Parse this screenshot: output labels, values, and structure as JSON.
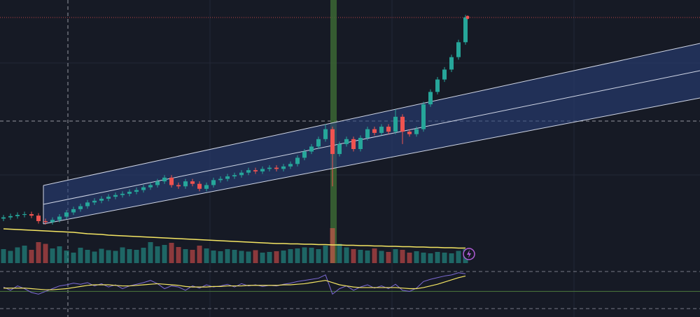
{
  "chart_data": {
    "type": "candlestick",
    "up_color": "#26a69a",
    "down_color": "#ef5350",
    "ylim": [
      0,
      100
    ],
    "open": [
      12.0,
      12.5,
      13.0,
      13.5,
      13.8,
      13.2,
      11.0,
      10.6,
      11.5,
      12.8,
      14.5,
      15.8,
      17.0,
      18.5,
      19.2,
      20.0,
      20.8,
      21.5,
      22.0,
      22.8,
      23.5,
      24.6,
      25.5,
      27.0,
      28.5,
      25.5,
      25.0,
      27.0,
      26.0,
      24.0,
      25.5,
      27.5,
      28.0,
      29.0,
      29.5,
      30.5,
      31.5,
      31.0,
      32.0,
      32.5,
      32.0,
      33.0,
      34.0,
      36.5,
      39.0,
      41.0,
      44.0,
      48.0,
      38.0,
      42.0,
      44.0,
      40.0,
      44.5,
      48.0,
      46.5,
      49.0,
      47.0,
      53.0,
      47.0,
      46.0,
      48.0,
      58.0,
      63.0,
      68.0,
      72.0,
      77.0,
      83.0
    ],
    "high": [
      13.5,
      14,
      14.5,
      14.8,
      14.8,
      14.2,
      12,
      12.5,
      13.8,
      15.5,
      16.8,
      18,
      19.5,
      20.2,
      21,
      21.8,
      22.5,
      23,
      23.8,
      24.5,
      25.6,
      26.5,
      28,
      29.5,
      29.5,
      26.5,
      28,
      28,
      27,
      26.5,
      28.5,
      29,
      30,
      30.5,
      31.5,
      32.5,
      32.5,
      33,
      33.5,
      33.5,
      34,
      35,
      37.5,
      40,
      42,
      45,
      50,
      49,
      43,
      45,
      45,
      45.5,
      49,
      49,
      50,
      50,
      56,
      54,
      48,
      49,
      59,
      64,
      69,
      73,
      78,
      84,
      94
    ],
    "low": [
      11,
      11.5,
      12,
      12.5,
      12.2,
      10,
      9.6,
      9.6,
      10.5,
      11.8,
      13.5,
      14.8,
      16,
      17.5,
      18.2,
      19,
      19.8,
      20.5,
      21,
      21.8,
      22.5,
      23.6,
      24.5,
      26,
      24.5,
      24,
      24,
      25,
      23,
      23,
      24.5,
      26.5,
      27,
      28,
      28.5,
      29.5,
      30,
      30,
      31,
      31,
      31,
      32,
      33,
      35.5,
      38,
      40,
      43,
      25,
      37,
      41,
      39,
      39,
      43.5,
      45.5,
      45.5,
      46,
      46,
      42,
      45,
      45,
      47,
      57,
      62,
      67,
      71,
      76,
      82
    ],
    "close": [
      12.5,
      13.0,
      13.5,
      13.8,
      13.2,
      11.0,
      10.6,
      11.5,
      12.8,
      14.5,
      15.8,
      17.0,
      18.5,
      19.2,
      20.0,
      20.8,
      21.5,
      22.0,
      22.8,
      23.5,
      24.6,
      25.5,
      27.0,
      28.5,
      25.5,
      25.0,
      27.0,
      26.0,
      24.0,
      25.5,
      27.5,
      28.0,
      29.0,
      29.5,
      30.5,
      31.5,
      31.0,
      32.0,
      32.5,
      32.0,
      33.0,
      34.0,
      36.5,
      39.0,
      41.0,
      44.0,
      48.0,
      38.0,
      42.0,
      44.0,
      40.0,
      44.5,
      48.0,
      46.5,
      49.0,
      47.0,
      53.0,
      47.0,
      46.0,
      48.0,
      58.0,
      63.0,
      68.0,
      72.0,
      77.0,
      83.0,
      93.0
    ],
    "volume": [
      40,
      35,
      45,
      50,
      38,
      60,
      55,
      42,
      48,
      36,
      30,
      44,
      38,
      33,
      41,
      37,
      35,
      45,
      40,
      38,
      44,
      60,
      48,
      52,
      58,
      46,
      40,
      38,
      50,
      42,
      36,
      34,
      40,
      38,
      35,
      33,
      37,
      30,
      32,
      34,
      36,
      40,
      42,
      45,
      44,
      40,
      50,
      100,
      55,
      45,
      40,
      38,
      36,
      42,
      35,
      32,
      40,
      38,
      30,
      34,
      30,
      28,
      32,
      30,
      28,
      35,
      40
    ],
    "volume_ma": [
      98,
      97,
      96,
      95,
      94,
      93,
      92,
      91,
      90,
      89,
      88,
      86,
      84,
      83,
      82,
      80,
      79,
      78,
      77,
      76,
      75,
      74,
      73,
      72,
      71,
      70,
      69,
      68,
      67,
      66,
      65,
      64,
      63,
      62,
      61,
      60,
      59,
      58,
      57,
      56,
      56,
      55,
      55,
      54,
      54,
      53,
      53,
      52,
      52,
      51,
      51,
      50,
      50,
      49,
      49,
      48,
      48,
      47,
      47,
      46,
      46,
      45,
      45,
      44,
      44,
      43,
      43
    ],
    "volume_lim": [
      0,
      100
    ],
    "volume_ma_color": "#f5e663",
    "rsi": [
      58,
      52,
      60,
      55,
      48,
      45,
      50,
      55,
      60,
      62,
      65,
      63,
      66,
      60,
      64,
      58,
      62,
      55,
      60,
      63,
      66,
      70,
      64,
      55,
      60,
      58,
      52,
      60,
      56,
      62,
      58,
      60,
      63,
      58,
      64,
      60,
      62,
      59,
      61,
      60,
      63,
      65,
      68,
      70,
      72,
      74,
      80,
      45,
      55,
      60,
      52,
      58,
      62,
      56,
      60,
      55,
      63,
      52,
      50,
      56,
      68,
      72,
      75,
      78,
      80,
      84,
      82
    ],
    "rsi_ma": [
      56,
      56,
      56,
      56,
      55,
      54,
      53,
      53,
      54,
      55,
      57,
      59,
      61,
      62,
      62,
      62,
      61,
      60,
      60,
      61,
      62,
      63,
      64,
      63,
      62,
      61,
      59,
      58,
      58,
      58,
      59,
      59,
      60,
      60,
      60,
      61,
      61,
      61,
      61,
      61,
      62,
      62,
      63,
      64,
      66,
      68,
      70,
      66,
      62,
      60,
      58,
      57,
      57,
      57,
      57,
      57,
      57,
      56,
      55,
      55,
      57,
      60,
      63,
      67,
      71,
      75,
      78
    ],
    "rsi_lim": [
      20,
      90
    ],
    "rsi_level": 50,
    "rsi_color": "#7e6bd6",
    "rsi_ma_color": "#f5e663"
  }
}
